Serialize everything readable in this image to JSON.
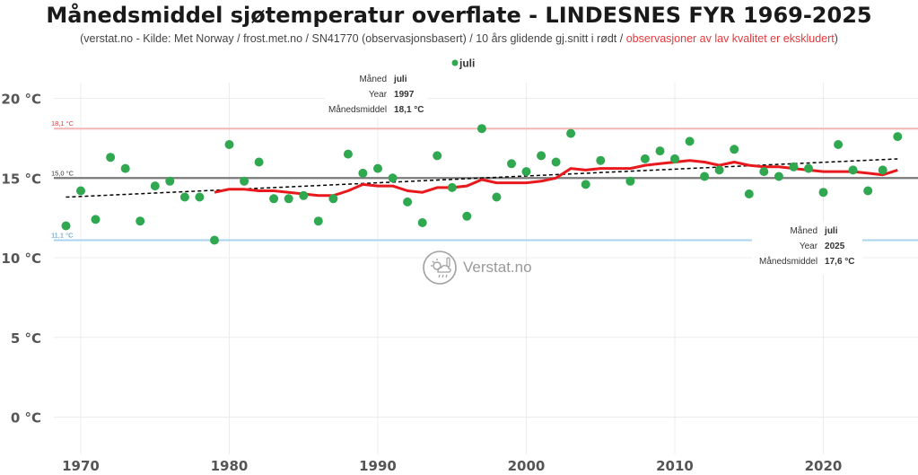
{
  "title": "Månedsmiddel sjøtemperatur overflate - LINDESNES FYR 1969-2025",
  "subtitle_main": "(verstat.no - Kilde: Met Norway / frost.met.no / SN41770 (observasjonsbasert) / 10 års glidende gj.snitt i rødt /",
  "subtitle_warn": "observasjoner av lav kvalitet er ekskludert",
  "subtitle_end": ")",
  "watermark": "Verstat.no",
  "colors": {
    "points": "#2fa84f",
    "moving_avg": "#e8191c",
    "trend": "#000000",
    "max_line": "#f5b5b5",
    "min_line": "#a8d4f0",
    "mean_line": "#7a7a7a"
  },
  "tooltip1": {
    "k1": "Måned",
    "v1": "juli",
    "k2": "Year",
    "v2": "1997",
    "k3": "Månedsmiddel",
    "v3": "18,1 °C"
  },
  "tooltip2": {
    "k1": "Måned",
    "v1": "juli",
    "k2": "Year",
    "v2": "2025",
    "k3": "Månedsmiddel",
    "v3": "17,6 °C"
  },
  "chart_data": {
    "type": "scatter",
    "title": "Månedsmiddel sjøtemperatur overflate - LINDESNES FYR 1969-2025",
    "xlabel": "",
    "ylabel": "",
    "xlim": [
      1968,
      2026
    ],
    "ylim": [
      -2,
      21.5
    ],
    "x_ticks": [
      1970,
      1980,
      1990,
      2000,
      2010,
      2020
    ],
    "x_tick_labels": [
      "1970",
      "1980",
      "1990",
      "2000",
      "2010",
      "2020"
    ],
    "y_ticks": [
      0,
      5,
      10,
      15,
      20
    ],
    "y_tick_labels": [
      "0 °C",
      "5 °C",
      "10 °C",
      "15 °C",
      "20 °C"
    ],
    "legend": {
      "label": "juli",
      "position": "top-center"
    },
    "reference_lines": [
      {
        "label": "18,1 °C",
        "value": 18.1,
        "kind": "max"
      },
      {
        "label": "15,0 °C",
        "value": 15.0,
        "kind": "mean"
      },
      {
        "label": "11,1 °C",
        "value": 11.1,
        "kind": "min"
      }
    ],
    "series": [
      {
        "name": "juli",
        "kind": "points",
        "x": [
          1969,
          1970,
          1971,
          1972,
          1973,
          1974,
          1975,
          1976,
          1977,
          1978,
          1979,
          1980,
          1981,
          1982,
          1983,
          1984,
          1985,
          1986,
          1987,
          1988,
          1989,
          1990,
          1991,
          1992,
          1993,
          1994,
          1995,
          1996,
          1997,
          1998,
          1999,
          2000,
          2001,
          2002,
          2003,
          2004,
          2005,
          2007,
          2008,
          2009,
          2010,
          2011,
          2012,
          2013,
          2014,
          2015,
          2016,
          2017,
          2018,
          2019,
          2020,
          2021,
          2022,
          2023,
          2024,
          2025
        ],
        "values": [
          12.0,
          14.2,
          12.4,
          16.3,
          15.6,
          12.3,
          14.5,
          14.8,
          13.8,
          13.8,
          11.1,
          17.1,
          14.8,
          16.0,
          13.7,
          13.7,
          13.9,
          12.3,
          13.7,
          16.5,
          15.3,
          15.6,
          15.0,
          13.5,
          12.2,
          16.4,
          14.4,
          12.6,
          18.1,
          13.8,
          15.9,
          15.4,
          16.4,
          16.0,
          17.8,
          14.6,
          16.1,
          14.8,
          16.2,
          16.7,
          16.2,
          17.3,
          15.1,
          15.5,
          16.8,
          14.0,
          15.4,
          15.1,
          15.7,
          15.6,
          14.1,
          17.1,
          15.5,
          14.2,
          15.5,
          17.6
        ]
      },
      {
        "name": "10 års glidende gj.snitt",
        "kind": "line",
        "x": [
          1979,
          1980,
          1981,
          1982,
          1983,
          1984,
          1985,
          1986,
          1987,
          1988,
          1989,
          1990,
          1991,
          1992,
          1993,
          1994,
          1995,
          1996,
          1997,
          1998,
          1999,
          2000,
          2001,
          2002,
          2003,
          2004,
          2005,
          2006,
          2007,
          2008,
          2009,
          2010,
          2011,
          2012,
          2013,
          2014,
          2015,
          2016,
          2017,
          2018,
          2019,
          2020,
          2021,
          2022,
          2023,
          2024,
          2025
        ],
        "values": [
          14.1,
          14.3,
          14.3,
          14.2,
          14.2,
          14.1,
          14.0,
          13.9,
          13.9,
          14.2,
          14.6,
          14.5,
          14.5,
          14.2,
          14.1,
          14.4,
          14.4,
          14.5,
          14.9,
          14.7,
          14.7,
          14.7,
          14.8,
          15.0,
          15.6,
          15.5,
          15.6,
          15.6,
          15.6,
          15.8,
          15.9,
          16.0,
          16.1,
          16.0,
          15.8,
          16.0,
          15.8,
          15.7,
          15.7,
          15.6,
          15.5,
          15.4,
          15.4,
          15.4,
          15.3,
          15.2,
          15.5
        ]
      },
      {
        "name": "Trend",
        "kind": "trend",
        "x": [
          1969,
          2025
        ],
        "values": [
          13.8,
          16.2
        ]
      }
    ]
  }
}
